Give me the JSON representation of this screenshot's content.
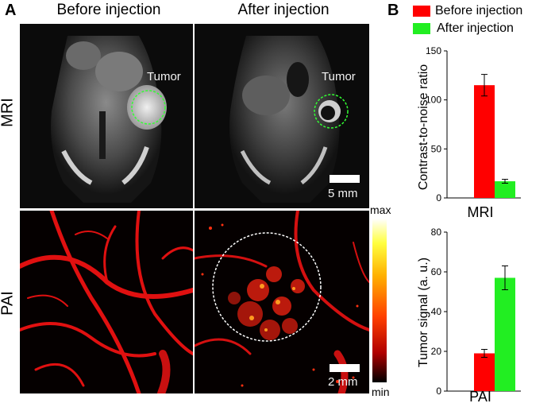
{
  "panels": {
    "a_label": "A",
    "b_label": "B"
  },
  "columns": {
    "before": "Before injection",
    "after": "After injection"
  },
  "rows": {
    "mri": "MRI",
    "pai": "PAI"
  },
  "annotations": {
    "tumor_before": "Tumor",
    "tumor_after": "Tumor",
    "scale_mri": "5 mm",
    "scale_pai": "2 mm"
  },
  "colorbar": {
    "max": "max",
    "min": "min"
  },
  "legend": {
    "items": [
      {
        "label": "Before injection",
        "color": "#ff0000"
      },
      {
        "label": "After injection",
        "color": "#22ee22"
      }
    ]
  },
  "chart_data": [
    {
      "type": "bar",
      "categories": [
        "Before injection",
        "After injection"
      ],
      "values": [
        115,
        17
      ],
      "errors": [
        11,
        2
      ],
      "colors": [
        "#ff0000",
        "#22ee22"
      ],
      "xlabel": "MRI",
      "ylabel": "Contrast-to-noise ratio",
      "ylim": [
        0,
        150
      ],
      "yticks": [
        0,
        50,
        100,
        150
      ]
    },
    {
      "type": "bar",
      "categories": [
        "Before injection",
        "After injection"
      ],
      "values": [
        19,
        57
      ],
      "errors": [
        2,
        6
      ],
      "colors": [
        "#ff0000",
        "#22ee22"
      ],
      "xlabel": "PAI",
      "ylabel": "Tumor signal (a. u.)",
      "ylim": [
        0,
        80
      ],
      "yticks": [
        0,
        20,
        40,
        60,
        80
      ]
    }
  ]
}
